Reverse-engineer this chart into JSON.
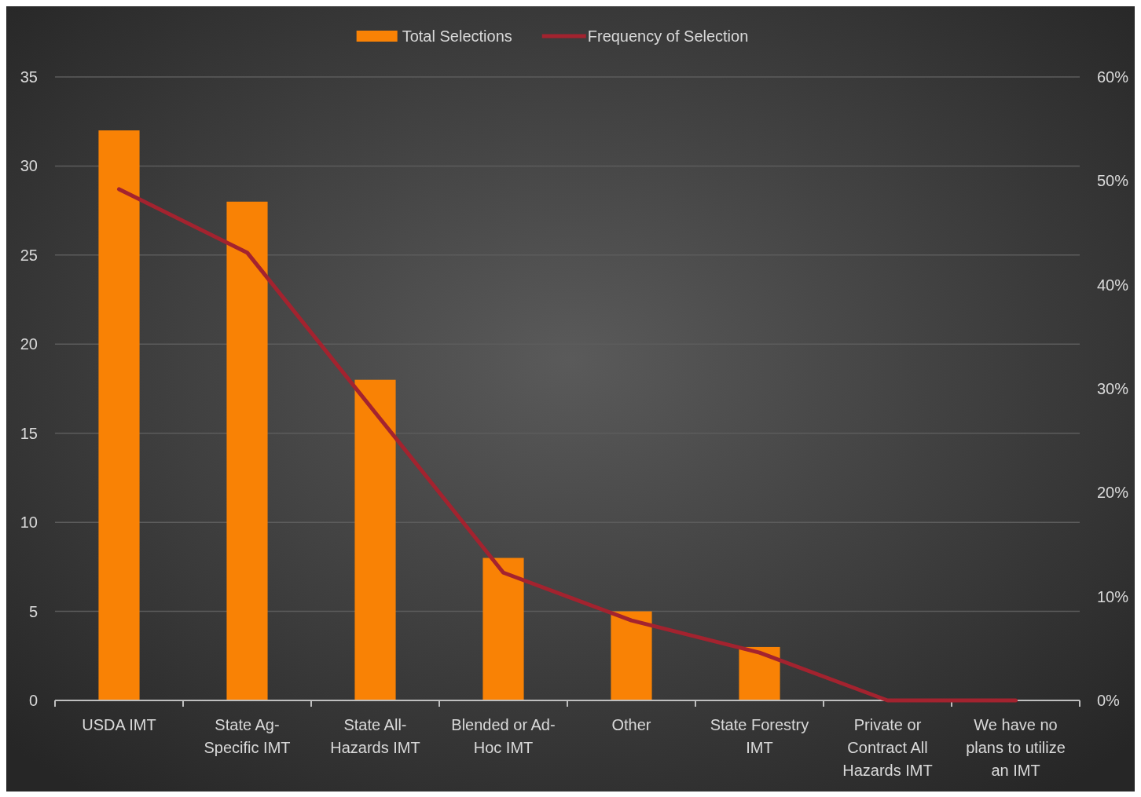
{
  "chart_data": {
    "type": "bar",
    "categories": [
      "USDA IMT",
      "State Ag-Specific IMT",
      "State All-Hazards IMT",
      "Blended or Ad-Hoc IMT",
      "Other",
      "State Forestry IMT",
      "Private or Contract All Hazards IMT",
      "We have no plans to utilize an IMT"
    ],
    "series": [
      {
        "name": "Total Selections",
        "color": "#f98205",
        "values": [
          32,
          28,
          18,
          8,
          5,
          3,
          0,
          0
        ]
      },
      {
        "name": "Frequency of Selection",
        "type": "line",
        "axis": "y2",
        "color": "#a3232f",
        "values": [
          49.2,
          43.1,
          27.7,
          12.3,
          7.7,
          4.6,
          0,
          0
        ]
      }
    ],
    "ylim": [
      0,
      35
    ],
    "yticks": [
      0,
      5,
      10,
      15,
      20,
      25,
      30,
      35
    ],
    "y2lim": [
      0,
      60
    ],
    "y2ticks": [
      {
        "value": 0,
        "label": "0%"
      },
      {
        "value": 10,
        "label": "10%"
      },
      {
        "value": 20,
        "label": "20%"
      },
      {
        "value": 30,
        "label": "30%"
      },
      {
        "value": 40,
        "label": "40%"
      },
      {
        "value": 50,
        "label": "50%"
      },
      {
        "value": 60,
        "label": "60%"
      }
    ],
    "grid": "y",
    "legend": "top",
    "marker": "none",
    "line_style": "solid"
  }
}
